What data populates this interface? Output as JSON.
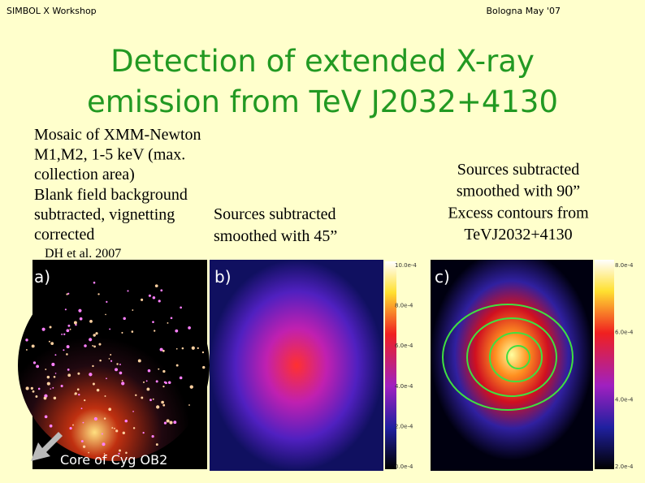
{
  "header": {
    "left": "SIMBOL X Workshop",
    "right": "Bologna May '07"
  },
  "title": [
    "Detection of extended X-ray",
    "emission from TeV J2032+4130"
  ],
  "left_text": [
    "Mosaic of XMM-Newton",
    "M1,M2, 1-5 keV (max.",
    "collection area)",
    "Blank field background",
    "subtracted, vignetting",
    "corrected"
  ],
  "citation": "DH et al. 2007",
  "middle_text": [
    "Sources subtracted",
    "smoothed with 45”"
  ],
  "right_text": [
    "Sources subtracted",
    "smoothed with 90”",
    "Excess contours from",
    "TeVJ2032+4130"
  ],
  "panels": [
    {
      "label": "a)",
      "annotation": "Core of Cyg OB2"
    },
    {
      "label": "b)",
      "colorbar": [
        "10.0e-4",
        "8.0e-4",
        "6.0e-4",
        "4.0e-4",
        "2.0e-4",
        "0.0e-4"
      ]
    },
    {
      "label": "c)",
      "colorbar": [
        "8.0e-4",
        "6.0e-4",
        "4.0e-4",
        "2.0e-4"
      ]
    }
  ]
}
